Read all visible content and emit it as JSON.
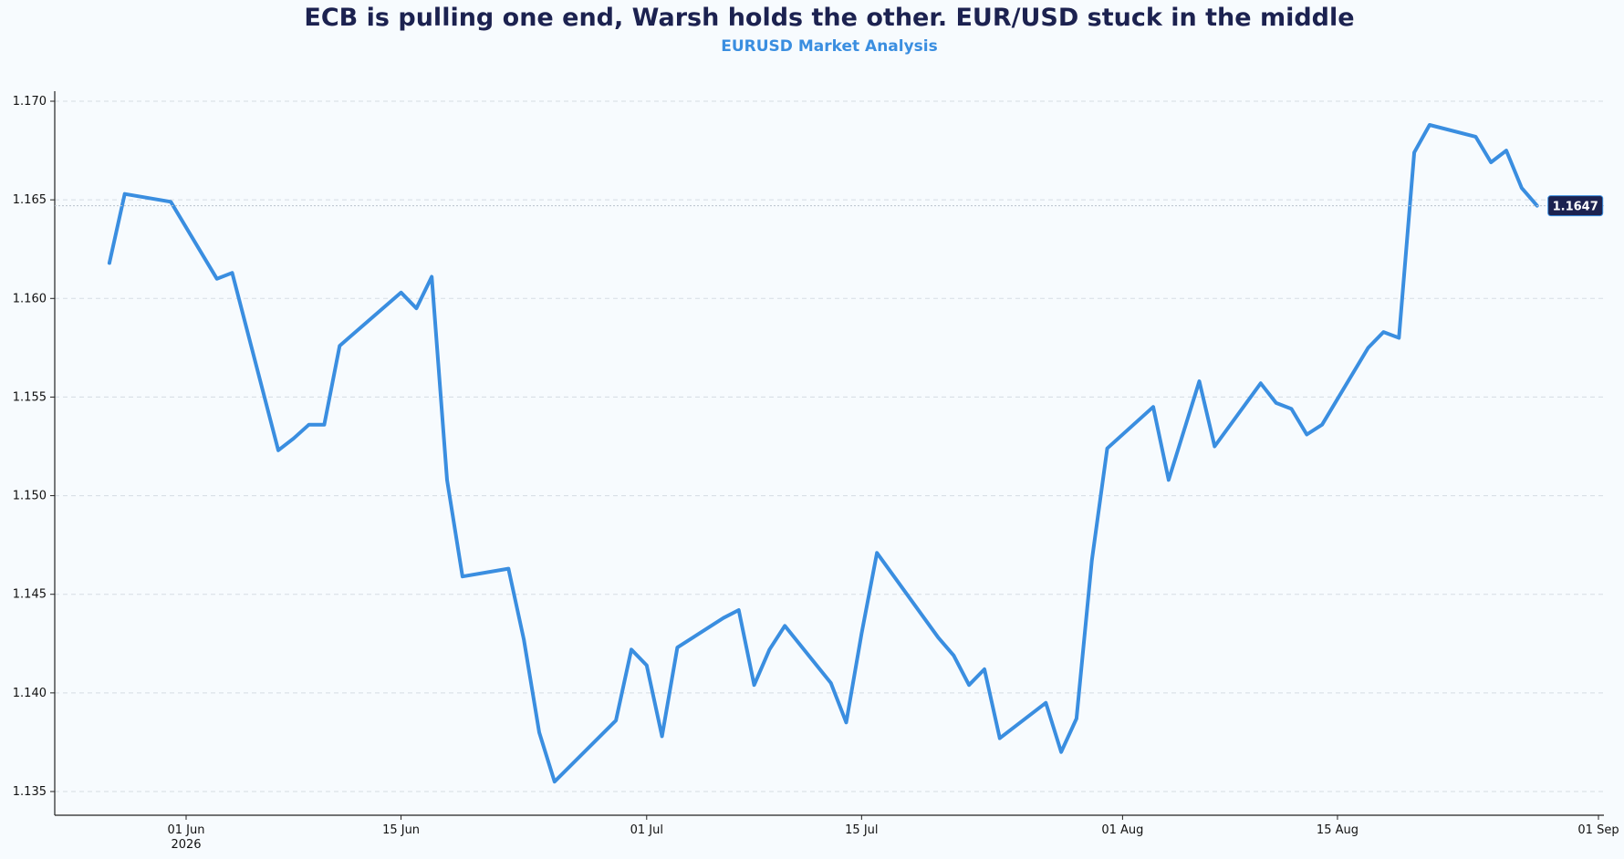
{
  "chart_data": {
    "type": "line",
    "title": "ECB is pulling one end, Warsh holds the other. EUR/USD stuck in the middle",
    "subtitle": "EURUSD Market Analysis",
    "xlabel": "",
    "ylabel": "",
    "xlim": [
      "2026-05-22",
      "2026-09-01"
    ],
    "ylim": [
      1.1345,
      1.1703
    ],
    "yticks": [
      1.135,
      1.14,
      1.145,
      1.15,
      1.155,
      1.16,
      1.165,
      1.17
    ],
    "ytick_labels": [
      "1.135",
      "1.140",
      "1.145",
      "1.150",
      "1.155",
      "1.160",
      "1.165",
      "1.170"
    ],
    "xticks": [
      {
        "date": "2026-06-01",
        "label": "01 Jun",
        "sublabel": "2026"
      },
      {
        "date": "2026-06-15",
        "label": "15 Jun",
        "sublabel": ""
      },
      {
        "date": "2026-07-01",
        "label": "01 Jul",
        "sublabel": ""
      },
      {
        "date": "2026-07-15",
        "label": "15 Jul",
        "sublabel": ""
      },
      {
        "date": "2026-08-01",
        "label": "01 Aug",
        "sublabel": ""
      },
      {
        "date": "2026-08-15",
        "label": "15 Aug",
        "sublabel": ""
      },
      {
        "date": "2026-09-01",
        "label": "01 Sep",
        "sublabel": ""
      }
    ],
    "grid": true,
    "colors": {
      "line": "#3a8ee0",
      "badge": "#1c2250",
      "title": "#1c2250",
      "subtitle": "#3a8ee0",
      "grid": "#d5dce3"
    },
    "last_value_label": "1.1647",
    "last_value": 1.1647,
    "series": [
      {
        "x": [
          "2026-05-27",
          "2026-05-28",
          "2026-05-31",
          "2026-06-03",
          "2026-06-04",
          "2026-06-07",
          "2026-06-08",
          "2026-06-09",
          "2026-06-10",
          "2026-06-11",
          "2026-06-15",
          "2026-06-16",
          "2026-06-17",
          "2026-06-18",
          "2026-06-19",
          "2026-06-22",
          "2026-06-23",
          "2026-06-24",
          "2026-06-25",
          "2026-06-29",
          "2026-06-30",
          "2026-07-01",
          "2026-07-02",
          "2026-07-03",
          "2026-07-06",
          "2026-07-07",
          "2026-07-08",
          "2026-07-09",
          "2026-07-10",
          "2026-07-13",
          "2026-07-14",
          "2026-07-15",
          "2026-07-16",
          "2026-07-20",
          "2026-07-21",
          "2026-07-22",
          "2026-07-23",
          "2026-07-24",
          "2026-07-27",
          "2026-07-28",
          "2026-07-29",
          "2026-07-30",
          "2026-07-31",
          "2026-08-03",
          "2026-08-04",
          "2026-08-05",
          "2026-08-06",
          "2026-08-07",
          "2026-08-10",
          "2026-08-11",
          "2026-08-12",
          "2026-08-13",
          "2026-08-14",
          "2026-08-17",
          "2026-08-18",
          "2026-08-19",
          "2026-08-20",
          "2026-08-21",
          "2026-08-24",
          "2026-08-25",
          "2026-08-26",
          "2026-08-27",
          "2026-08-28"
        ],
        "y": [
          1.1618,
          1.1653,
          1.1649,
          1.161,
          1.1613,
          1.1523,
          1.1529,
          1.1536,
          1.1536,
          1.1576,
          1.1603,
          1.1595,
          1.1611,
          1.1508,
          1.1459,
          1.1463,
          1.1427,
          1.138,
          1.1355,
          1.1386,
          1.1422,
          1.1414,
          1.1378,
          1.1423,
          1.1438,
          1.1442,
          1.1404,
          1.1422,
          1.1434,
          1.1405,
          1.1385,
          1.143,
          1.1471,
          1.1428,
          1.1419,
          1.1404,
          1.1412,
          1.1377,
          1.1395,
          1.137,
          1.1387,
          1.1467,
          1.1524,
          1.1545,
          1.1508,
          1.1533,
          1.1558,
          1.1525,
          1.1557,
          1.1547,
          1.1544,
          1.1531,
          1.1536,
          1.1575,
          1.1583,
          1.158,
          1.1674,
          1.1688,
          1.1682,
          1.1669,
          1.1675,
          1.1656,
          1.1647
        ]
      }
    ]
  }
}
